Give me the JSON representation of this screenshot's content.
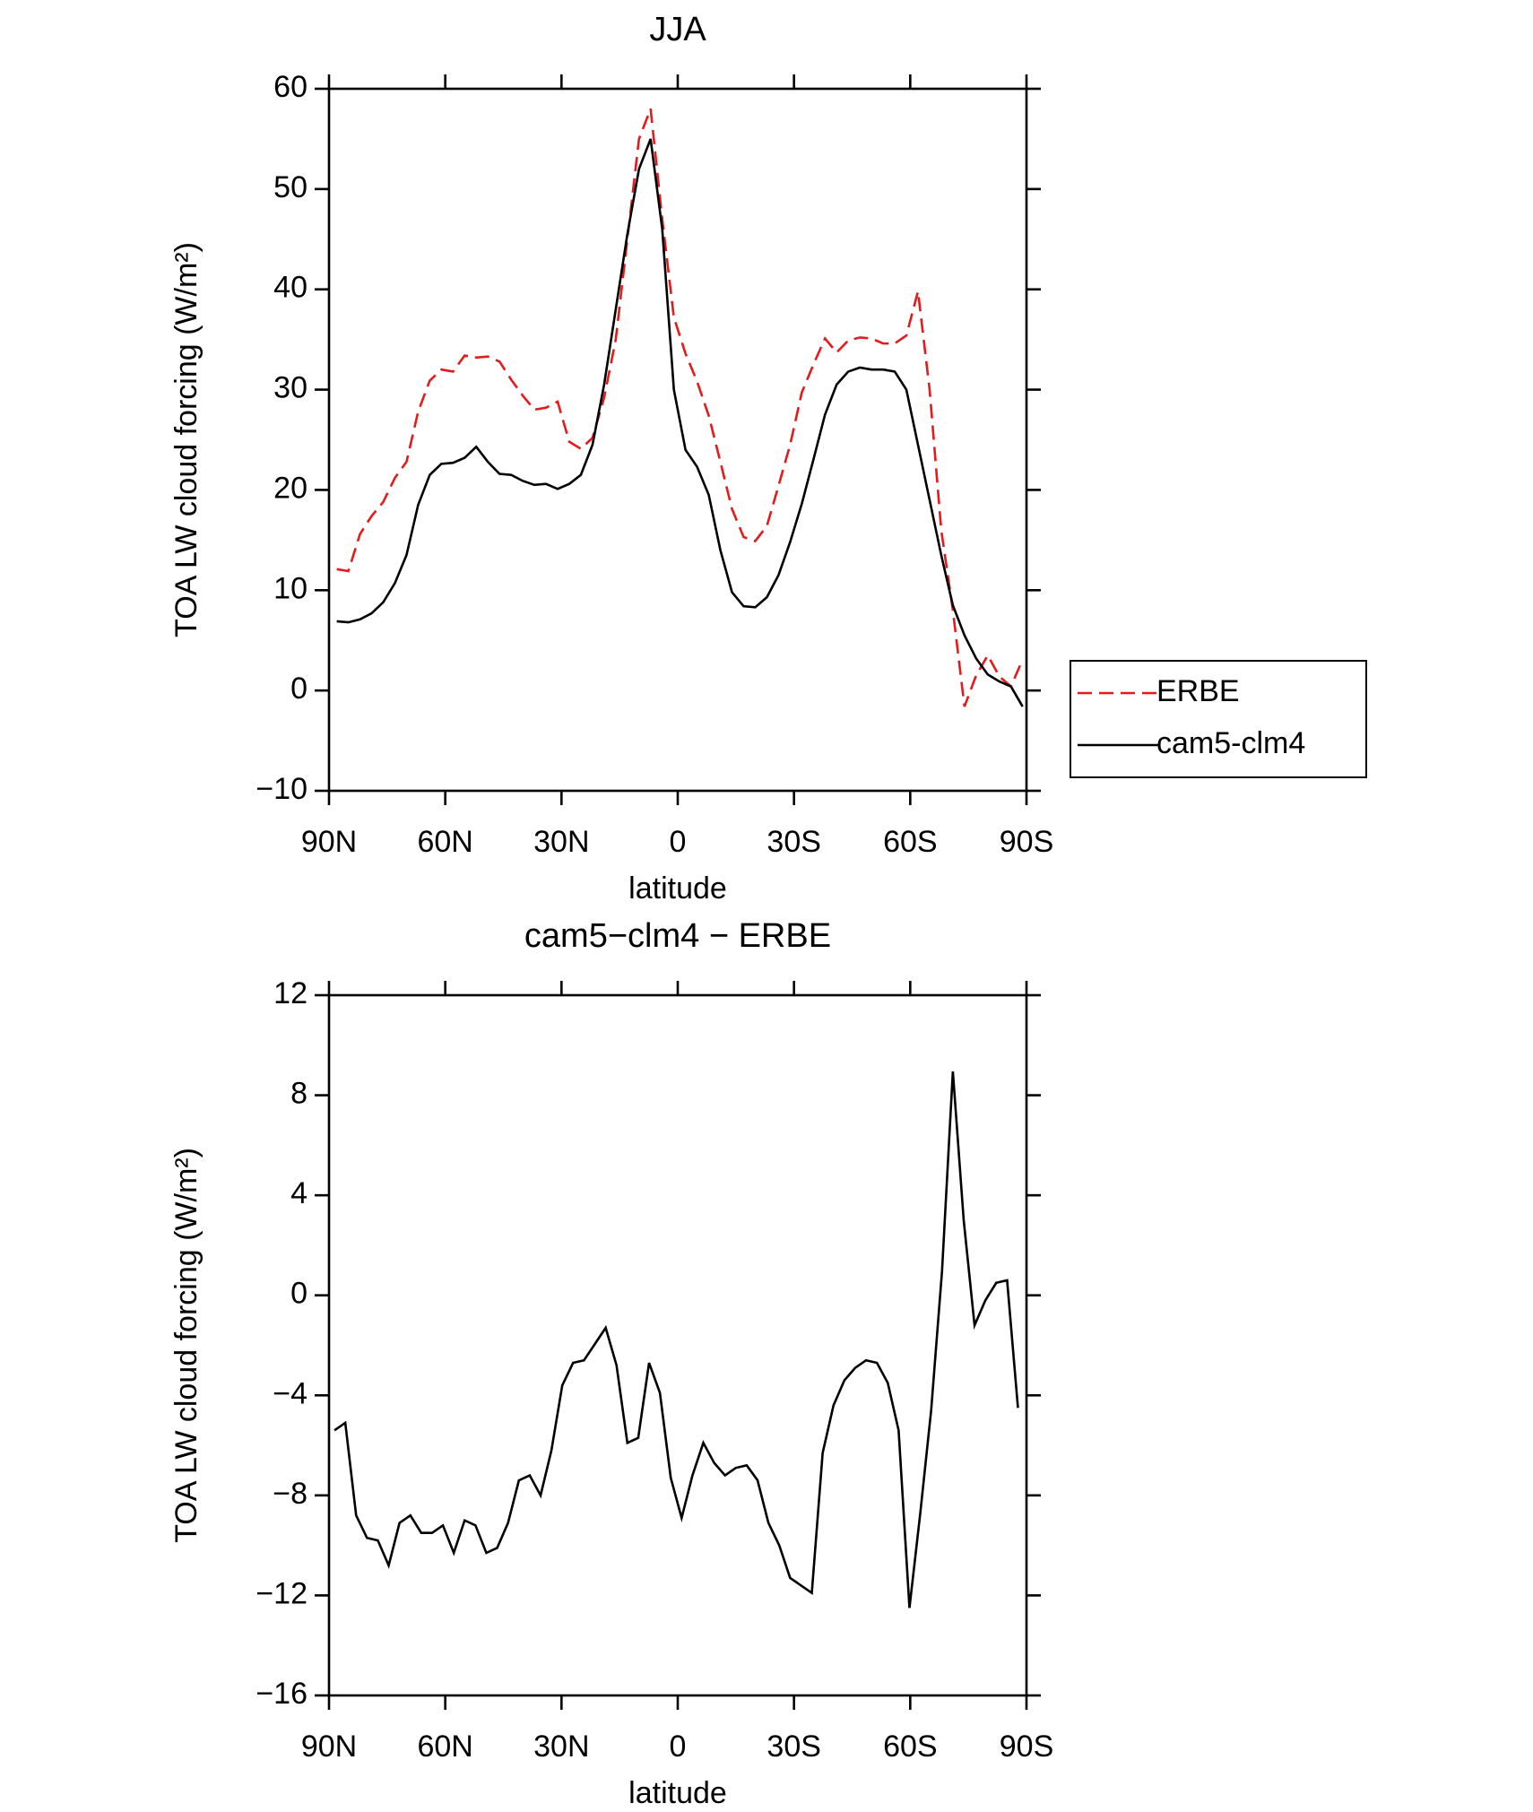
{
  "chart_data": [
    {
      "type": "line",
      "title": "JJA",
      "xlabel": "latitude",
      "ylabel": "TOA LW cloud forcing (W/m²)",
      "x": [
        88,
        85,
        82,
        79,
        76,
        73,
        70,
        67,
        64,
        61,
        58,
        55,
        52,
        49,
        46,
        43,
        40,
        37,
        34,
        31,
        28,
        25,
        22,
        19,
        16,
        13,
        10,
        7,
        4,
        1,
        -2,
        -5,
        -8,
        -11,
        -14,
        -17,
        -20,
        -23,
        -26,
        -29,
        -32,
        -35,
        -38,
        -41,
        -44,
        -47,
        -50,
        -53,
        -56,
        -59,
        -62,
        -65,
        -68,
        -71,
        -74,
        -77,
        -80,
        -83,
        -86,
        -89
      ],
      "series": [
        {
          "name": "ERBE",
          "color": "#e41a1c",
          "dash": true,
          "values": [
            12.1,
            11.9,
            15.6,
            17.4,
            18.8,
            21.2,
            22.8,
            27.8,
            30.9,
            32,
            31.8,
            33.4,
            33.2,
            33.3,
            32.8,
            31,
            29.4,
            28,
            28.2,
            28.8,
            24.8,
            24.1,
            25.2,
            29.2,
            35,
            45,
            55,
            58,
            47,
            37.2,
            33.6,
            30.8,
            27.4,
            22.8,
            18.1,
            15.3,
            14.9,
            16.4,
            20.4,
            24.5,
            29.7,
            32.5,
            35.1,
            33.7,
            34.9,
            35.2,
            35.1,
            34.6,
            34.6,
            35.4,
            39.8,
            30,
            16,
            8,
            -1.6,
            1.5,
            3.5,
            1.4,
            0.4,
            3.1
          ]
        },
        {
          "name": "cam5-clm4",
          "color": "#000000",
          "dash": false,
          "values": [
            6.9,
            6.8,
            7.1,
            7.7,
            8.8,
            10.7,
            13.5,
            18.5,
            21.5,
            22.6,
            22.7,
            23.2,
            24.3,
            22.8,
            21.6,
            21.5,
            20.9,
            20.5,
            20.6,
            20.1,
            20.6,
            21.5,
            24.5,
            30.5,
            38,
            45.5,
            52,
            55,
            46,
            30,
            24,
            22.3,
            19.5,
            14,
            9.8,
            8.4,
            8.3,
            9.3,
            11.5,
            14.8,
            18.6,
            23,
            27.5,
            30.5,
            31.8,
            32.2,
            32,
            32,
            31.8,
            30,
            24.5,
            19,
            13.5,
            8.5,
            5.5,
            3.2,
            1.6,
            0.9,
            0.4,
            -1.6
          ]
        }
      ],
      "xlim": [
        90,
        -90
      ],
      "xticks": [
        {
          "value": 90,
          "label": "90N"
        },
        {
          "value": 60,
          "label": "60N"
        },
        {
          "value": 30,
          "label": "30N"
        },
        0,
        {
          "value": -30,
          "label": "30S"
        },
        {
          "value": -60,
          "label": "60S"
        },
        {
          "value": -90,
          "label": "90S"
        }
      ],
      "ylim": [
        -10,
        60
      ],
      "yticks": [
        {
          "value": -10,
          "label": "−10"
        },
        0,
        10,
        20,
        30,
        40,
        50,
        60
      ],
      "legend": "right"
    },
    {
      "type": "line",
      "title": "cam5−clm4 − ERBE",
      "xlabel": "latitude",
      "ylabel": "TOA LW cloud forcing (W/m²)",
      "x": [
        88.6,
        85.8,
        83,
        80.2,
        77.4,
        74.6,
        71.8,
        69,
        66.2,
        63.4,
        60.6,
        57.8,
        55,
        52.2,
        49.4,
        46.6,
        43.8,
        41,
        38.2,
        35.4,
        32.6,
        29.8,
        27,
        24.2,
        21.4,
        18.6,
        15.8,
        13,
        10.2,
        7.4,
        4.6,
        1.8,
        -1,
        -3.8,
        -6.6,
        -9.4,
        -12.2,
        -15,
        -17.8,
        -20.6,
        -23.4,
        -26.2,
        -29,
        -31.8,
        -34.6,
        -37.4,
        -40.2,
        -43,
        -45.8,
        -48.6,
        -51.4,
        -54.2,
        -57,
        -59.8,
        -62.6,
        -65.4,
        -68.2,
        -71,
        -73.8,
        -76.6,
        -79.4,
        -82.2,
        -85,
        -87.8
      ],
      "series": [
        {
          "color": "#000000",
          "dash": false,
          "values": [
            -5.4,
            -5.1,
            -8.8,
            -9.7,
            -9.8,
            -10.8,
            -9.1,
            -8.8,
            -9.5,
            -9.5,
            -9.2,
            -10.3,
            -9,
            -9.2,
            -10.3,
            -10.1,
            -9.1,
            -7.4,
            -7.2,
            -8,
            -6.2,
            -3.6,
            -2.7,
            -2.6,
            -1.95,
            -1.3,
            -2.8,
            -5.9,
            -5.7,
            -2.7,
            -3.9,
            -7.3,
            -8.9,
            -7.2,
            -5.9,
            -6.7,
            -7.2,
            -6.9,
            -6.8,
            -7.4,
            -9.1,
            -10,
            -11.3,
            -11.6,
            -11.9,
            -6.3,
            -4.4,
            -3.4,
            -2.9,
            -2.6,
            -2.7,
            -3.5,
            -5.4,
            -12.5,
            -8.7,
            -4.6,
            0.96,
            8.95,
            3,
            -1.2,
            -0.2,
            0.5,
            0.6,
            -4.5
          ]
        }
      ],
      "xlim": [
        90,
        -90
      ],
      "xticks": [
        {
          "value": 90,
          "label": "90N"
        },
        {
          "value": 60,
          "label": "60N"
        },
        {
          "value": 30,
          "label": "30N"
        },
        0,
        {
          "value": -30,
          "label": "30S"
        },
        {
          "value": -60,
          "label": "60S"
        },
        {
          "value": -90,
          "label": "90S"
        }
      ],
      "ylim": [
        -16,
        12
      ],
      "yticks": [
        {
          "value": -16,
          "label": "−16"
        },
        {
          "value": -12,
          "label": "−12"
        },
        {
          "value": -8,
          "label": "−8"
        },
        {
          "value": -4,
          "label": "−4"
        },
        0,
        4,
        8,
        12
      ]
    }
  ]
}
